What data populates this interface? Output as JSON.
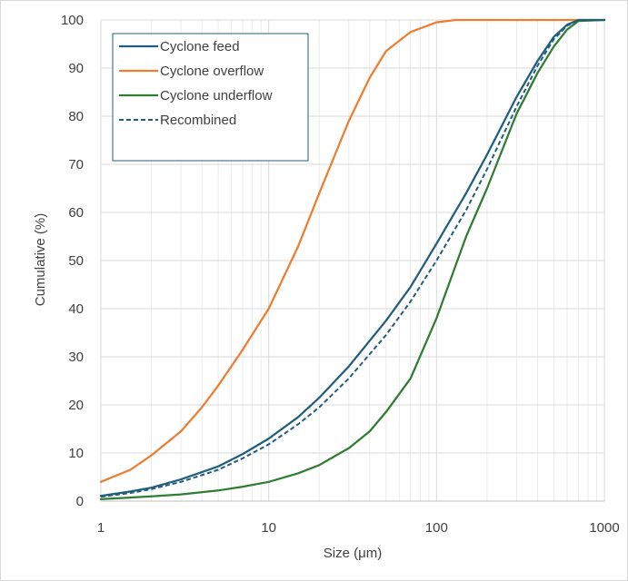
{
  "chart_data": {
    "type": "line",
    "xscale": "log",
    "xlim": [
      1,
      1000
    ],
    "ylim": [
      0,
      100
    ],
    "xlabel": "Size (μm)",
    "ylabel": "Cumulative (%)",
    "x_ticks": [
      "1",
      "10",
      "100",
      "1000"
    ],
    "y_ticks": [
      "0",
      "10",
      "20",
      "30",
      "40",
      "50",
      "60",
      "70",
      "80",
      "90",
      "100"
    ],
    "grid": true,
    "legend_position": "top-left",
    "series": [
      {
        "name": "Cyclone feed",
        "color": "#1f5e7e",
        "style": "solid",
        "points": [
          [
            1,
            1.1
          ],
          [
            1.5,
            2.0
          ],
          [
            2,
            2.8
          ],
          [
            3,
            4.5
          ],
          [
            5,
            7.2
          ],
          [
            7,
            9.8
          ],
          [
            10,
            13
          ],
          [
            15,
            17.5
          ],
          [
            20,
            21.5
          ],
          [
            30,
            28
          ],
          [
            50,
            37.5
          ],
          [
            70,
            44.5
          ],
          [
            100,
            53.5
          ],
          [
            150,
            64
          ],
          [
            200,
            72
          ],
          [
            300,
            84
          ],
          [
            400,
            91.5
          ],
          [
            500,
            96.5
          ],
          [
            600,
            99
          ],
          [
            700,
            100
          ],
          [
            1000,
            100
          ]
        ]
      },
      {
        "name": "Cyclone overflow",
        "color": "#ed7d31",
        "style": "solid",
        "points": [
          [
            1,
            4
          ],
          [
            1.5,
            6.5
          ],
          [
            2,
            9.5
          ],
          [
            3,
            14.5
          ],
          [
            4,
            19.5
          ],
          [
            5,
            24
          ],
          [
            7,
            31.5
          ],
          [
            10,
            40
          ],
          [
            15,
            53
          ],
          [
            20,
            64
          ],
          [
            30,
            79
          ],
          [
            40,
            88
          ],
          [
            50,
            93.5
          ],
          [
            70,
            97.5
          ],
          [
            100,
            99.5
          ],
          [
            130,
            100
          ],
          [
            1000,
            100
          ]
        ]
      },
      {
        "name": "Cyclone underflow",
        "color": "#2e7d32",
        "style": "solid",
        "points": [
          [
            1,
            0.4
          ],
          [
            2,
            1.0
          ],
          [
            3,
            1.4
          ],
          [
            5,
            2.2
          ],
          [
            7,
            3.0
          ],
          [
            10,
            4.0
          ],
          [
            15,
            5.8
          ],
          [
            20,
            7.5
          ],
          [
            30,
            11
          ],
          [
            40,
            14.5
          ],
          [
            50,
            18.5
          ],
          [
            70,
            25.5
          ],
          [
            100,
            38
          ],
          [
            150,
            55
          ],
          [
            200,
            65
          ],
          [
            300,
            80.5
          ],
          [
            400,
            89
          ],
          [
            500,
            94.5
          ],
          [
            600,
            98
          ],
          [
            700,
            99.8
          ],
          [
            1000,
            100
          ]
        ]
      },
      {
        "name": "Recombined",
        "color": "#1f5e7e",
        "style": "dashed",
        "points": [
          [
            1,
            0.9
          ],
          [
            1.5,
            1.7
          ],
          [
            2,
            2.5
          ],
          [
            3,
            4.0
          ],
          [
            5,
            6.5
          ],
          [
            7,
            8.9
          ],
          [
            10,
            11.8
          ],
          [
            15,
            16
          ],
          [
            20,
            19.5
          ],
          [
            30,
            25.5
          ],
          [
            50,
            34.5
          ],
          [
            70,
            41.5
          ],
          [
            100,
            50
          ],
          [
            150,
            60.5
          ],
          [
            200,
            69
          ],
          [
            300,
            82
          ],
          [
            400,
            90.5
          ],
          [
            500,
            96
          ],
          [
            600,
            98.8
          ],
          [
            700,
            100
          ],
          [
            1000,
            100
          ]
        ]
      }
    ]
  }
}
